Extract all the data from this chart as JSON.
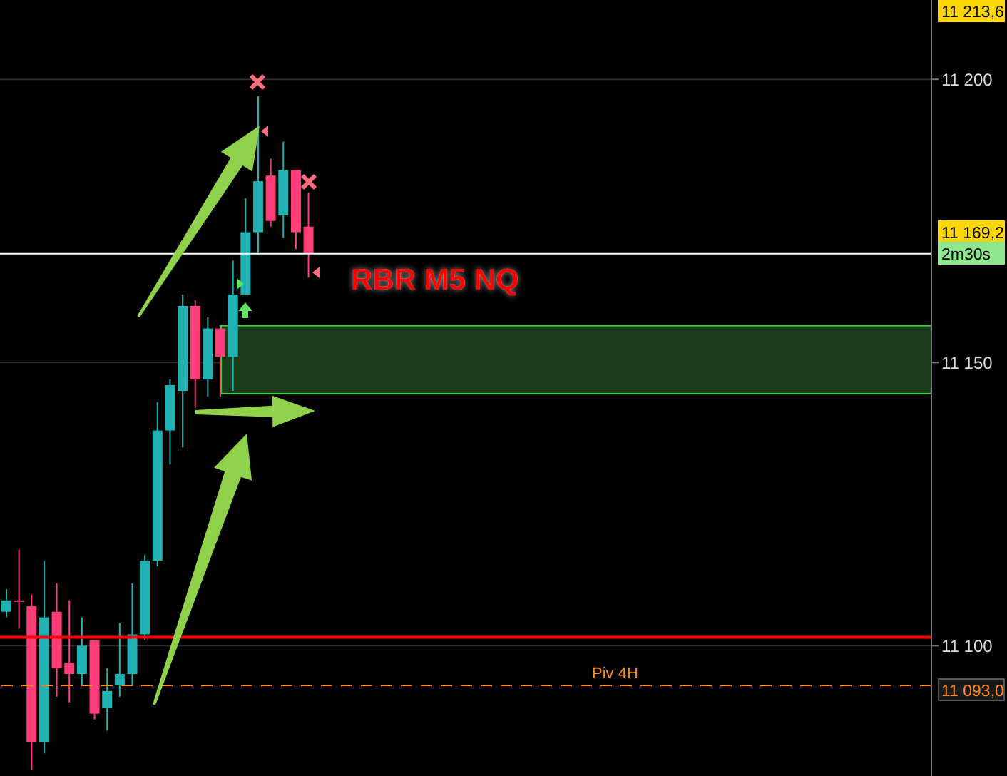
{
  "chart_data": {
    "type": "candlestick",
    "title": "RBR M5 NQ",
    "categories": [
      null,
      null,
      null,
      null,
      null,
      null,
      null,
      null,
      null,
      null,
      null,
      null,
      null,
      null,
      null,
      null,
      null,
      null,
      null,
      null,
      null,
      null,
      null,
      null,
      null,
      null,
      null,
      null,
      null,
      null,
      null,
      null,
      null,
      null,
      null,
      null,
      null,
      null,
      null,
      null,
      null,
      null,
      null,
      null,
      null,
      null,
      null,
      null,
      null,
      null,
      null,
      null,
      null,
      null,
      null,
      null,
      null,
      null,
      null,
      null,
      null,
      null,
      null,
      null,
      null,
      null,
      null,
      null,
      null,
      null,
      null,
      null,
      null,
      null
    ],
    "ohlc": [
      [
        11106,
        11110,
        11105,
        11108
      ],
      [
        11108,
        11117,
        11103,
        11108
      ],
      [
        11107,
        11109,
        11078,
        11083
      ],
      [
        11083,
        11115,
        11081,
        11105
      ],
      [
        11106,
        11111,
        11091,
        11096
      ],
      [
        11097,
        11108,
        11090,
        11095
      ],
      [
        11095,
        11105,
        11093,
        11100
      ],
      [
        11101,
        11101,
        11087,
        11088
      ],
      [
        11089,
        11096,
        11085,
        11092
      ],
      [
        11093,
        11104,
        11091,
        11095
      ],
      [
        11095,
        11111,
        11093,
        11102
      ],
      [
        11102,
        11116,
        11101,
        11115
      ],
      [
        11115,
        11143,
        11114,
        11138
      ],
      [
        11138,
        11147,
        11132,
        11146
      ],
      [
        11145,
        11162,
        11135,
        11160
      ],
      [
        11160,
        11161,
        11142,
        11147
      ],
      [
        11147,
        11158,
        11144,
        11156
      ],
      [
        11156,
        11156,
        11144,
        11151
      ],
      [
        11151,
        11168,
        11145,
        11162
      ],
      [
        11162,
        11179,
        11162,
        11173
      ],
      [
        11173,
        11197,
        11169,
        11182
      ],
      [
        11183,
        11186,
        11174,
        11175
      ],
      [
        11176,
        11189,
        11172,
        11184
      ],
      [
        11184,
        11184,
        11170,
        11173
      ],
      [
        11174,
        11180,
        11165,
        11169.2
      ],
      null,
      null,
      null,
      null,
      null,
      null,
      null,
      null,
      null,
      null,
      null,
      null,
      null,
      null,
      null,
      null,
      null,
      null,
      null,
      null,
      null,
      null,
      null,
      null,
      null,
      null,
      null,
      null,
      null,
      null,
      null,
      null,
      null,
      null,
      null,
      null,
      null,
      null,
      null,
      null,
      null,
      null,
      null,
      null,
      null,
      null,
      null,
      null,
      null
    ],
    "colors": [
      "#20b2b2",
      "#ff3d78",
      "#ff3d78",
      "#20b2b2",
      "#ff3d78",
      "#ff3d78",
      "#20b2b2",
      "#ff3d78",
      "#20b2b2",
      "#20b2b2",
      "#20b2b2",
      "#20b2b2",
      "#20b2b2",
      "#20b2b2",
      "#20b2b2",
      "#ff3d78",
      "#20b2b2",
      "#ff3d78",
      "#20b2b2",
      "#20b2b2",
      "#20b2b2",
      "#ff3d78",
      "#20b2b2",
      "#ff3d78",
      "#ff3d78",
      null,
      null,
      null,
      null,
      null,
      null,
      null,
      null,
      null,
      null,
      null,
      null,
      null,
      null,
      null,
      null,
      null,
      null,
      null,
      null,
      null,
      null,
      null,
      null,
      null,
      null,
      null,
      null,
      null,
      null,
      null,
      null,
      null,
      null,
      null,
      null,
      null,
      null,
      null,
      null,
      null,
      null,
      null,
      null,
      null,
      null,
      null,
      null,
      null
    ],
    "ylim": [
      11077,
      11214
    ],
    "yticks": [
      {
        "value": 11100,
        "label": "11 100"
      },
      {
        "value": 11150,
        "label": "11 150"
      },
      {
        "value": 11200,
        "label": "11 200"
      }
    ],
    "grid": "y",
    "ref_lines": [
      {
        "axis": "y",
        "value": 11169.2,
        "color": "#ffffff",
        "line_style": "solid"
      },
      {
        "axis": "y",
        "value": 11101.5,
        "color": "#ff0000",
        "line_style": "solid"
      },
      {
        "axis": "y",
        "value": 11093,
        "label": "Piv 4H",
        "color": "#ff8c1a",
        "line_style": "dashed"
      }
    ],
    "bands": [
      {
        "axis": "y",
        "from": 11144.5,
        "to": 11156.5,
        "color": "#1b3d1b"
      }
    ],
    "annotations": [
      "11 213,6",
      "11 169,2",
      "2m30s",
      "11 093,0"
    ]
  }
}
